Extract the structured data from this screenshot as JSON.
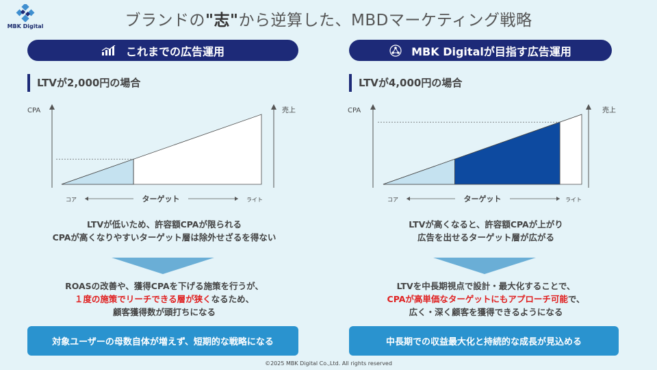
{
  "logo": {
    "text": "MBK Digital"
  },
  "title": {
    "before": "ブランドの",
    "emph": "\"志\"",
    "after": "から逆算した、MBDマーケティング戦略"
  },
  "left": {
    "header": "これまでの広告運用",
    "case_label": "LTVが2,000円の場合",
    "chart_data": {
      "type": "area",
      "ylabel": "CPA",
      "y2label": "売上",
      "xlabel": "ターゲット",
      "x_start_label": "コア",
      "x_end_label": "ライト",
      "cpa_ceiling_fraction": 0.26,
      "reach_fraction": 0.36
    },
    "desc": [
      "LTVが低いため、許容額CPAが限られる",
      "CPAが高くなりやすいターゲット層は除外せざるを得ない"
    ],
    "result": {
      "line1": "ROASの改善や、獲得CPAを下げる施策を行うが、",
      "line2_red": "１度の施策でリーチできる層が狭く",
      "line2_rest": "なるため、",
      "line3": "顧客獲得数が頭打ちになる"
    },
    "bottom": "対象ユーザーの母数自体が増えず、短期的な戦略になる"
  },
  "right": {
    "header": "MBK Digitalが目指す広告運用",
    "case_label": "LTVが4,000円の場合",
    "chart_data": {
      "type": "area",
      "ylabel": "CPA",
      "y2label": "売上",
      "xlabel": "ターゲット",
      "x_start_label": "コア",
      "x_end_label": "ライト",
      "cpa_ceiling_fraction": 0.52,
      "reach_fraction": 0.89,
      "core_fraction": 0.36
    },
    "desc": [
      "LTVが高くなると、許容額CPAが上がり",
      "広告を出せるターゲット層が広がる"
    ],
    "result": {
      "line1": "LTVを中長期視点で設計・最大化することで、",
      "line2_red": "CPAが高単価なターゲットにもアプローチ可能",
      "line2_rest": "で、",
      "line3": "広く・深く顧客を獲得できるようになる"
    },
    "bottom": "中長期での収益最大化と持続的な成長が見込める"
  },
  "colors": {
    "navy": "#1d2a78",
    "light_blue": "#c5e2f0",
    "dark_blue": "#0d4aa0",
    "button_blue": "#2a93cf",
    "arrow": "#6aaed6",
    "red": "#e02020"
  },
  "footer": "©2025 MBK Digital Co.,Ltd.   All rights reserved"
}
